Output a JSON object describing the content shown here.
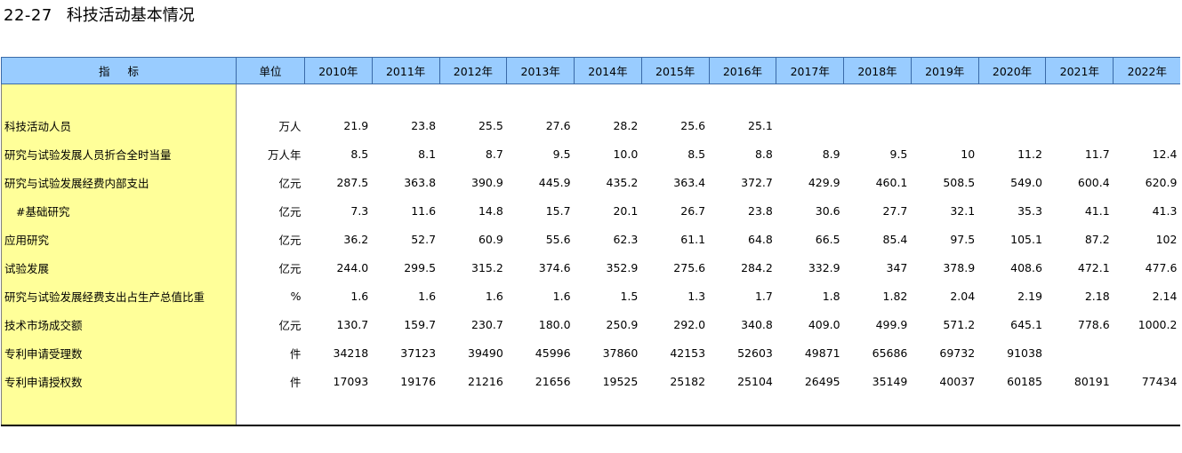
{
  "title": {
    "code": "22-27",
    "text": "科技活动基本情况"
  },
  "header": {
    "indicator_label": "指标",
    "unit_label": "单位",
    "years": [
      "2010年",
      "2011年",
      "2012年",
      "2013年",
      "2014年",
      "2015年",
      "2016年",
      "2017年",
      "2018年",
      "2019年",
      "2020年",
      "2021年",
      "2022年"
    ]
  },
  "rows": [
    {
      "label": "科技活动人员",
      "unit": "万人",
      "values": [
        "21.9",
        "23.8",
        "25.5",
        "27.6",
        "28.2",
        "25.6",
        "25.1",
        "",
        "",
        "",
        "",
        "",
        ""
      ]
    },
    {
      "label": "研究与试验发展人员折合全时当量",
      "unit": "万人年",
      "values": [
        "8.5",
        "8.1",
        "8.7",
        "9.5",
        "10.0",
        "8.5",
        "8.8",
        "8.9",
        "9.5",
        "10",
        "11.2",
        "11.7",
        "12.4"
      ]
    },
    {
      "label": "研究与试验发展经费内部支出",
      "unit": "亿元",
      "values": [
        "287.5",
        "363.8",
        "390.9",
        "445.9",
        "435.2",
        "363.4",
        "372.7",
        "429.9",
        "460.1",
        "508.5",
        "549.0",
        "600.4",
        "620.9"
      ]
    },
    {
      "label": "#基础研究",
      "unit": "亿元",
      "values": [
        "7.3",
        "11.6",
        "14.8",
        "15.7",
        "20.1",
        "26.7",
        "23.8",
        "30.6",
        "27.7",
        "32.1",
        "35.3",
        "41.1",
        "41.3"
      ]
    },
    {
      "label": "应用研究",
      "unit": "亿元",
      "values": [
        "36.2",
        "52.7",
        "60.9",
        "55.6",
        "62.3",
        "61.1",
        "64.8",
        "66.5",
        "85.4",
        "97.5",
        "105.1",
        "87.2",
        "102"
      ]
    },
    {
      "label": "试验发展",
      "unit": "亿元",
      "values": [
        "244.0",
        "299.5",
        "315.2",
        "374.6",
        "352.9",
        "275.6",
        "284.2",
        "332.9",
        "347",
        "378.9",
        "408.6",
        "472.1",
        "477.6"
      ]
    },
    {
      "label": "研究与试验发展经费支出占生产总值比重",
      "unit": "%",
      "values": [
        "1.6",
        "1.6",
        "1.6",
        "1.6",
        "1.5",
        "1.3",
        "1.7",
        "1.8",
        "1.82",
        "2.04",
        "2.19",
        "2.18",
        "2.14"
      ]
    },
    {
      "label": "技术市场成交额",
      "unit": "亿元",
      "values": [
        "130.7",
        "159.7",
        "230.7",
        "180.0",
        "250.9",
        "292.0",
        "340.8",
        "409.0",
        "499.9",
        "571.2",
        "645.1",
        "778.6",
        "1000.2"
      ]
    },
    {
      "label": "专利申请受理数",
      "unit": "件",
      "values": [
        "34218",
        "37123",
        "39490",
        "45996",
        "37860",
        "42153",
        "52603",
        "49871",
        "65686",
        "69732",
        "91038",
        "",
        ""
      ]
    },
    {
      "label": "专利申请授权数",
      "unit": "件",
      "values": [
        "17093",
        "19176",
        "21216",
        "21656",
        "19525",
        "25182",
        "25104",
        "26495",
        "35149",
        "40037",
        "60185",
        "80191",
        "77434"
      ]
    }
  ]
}
